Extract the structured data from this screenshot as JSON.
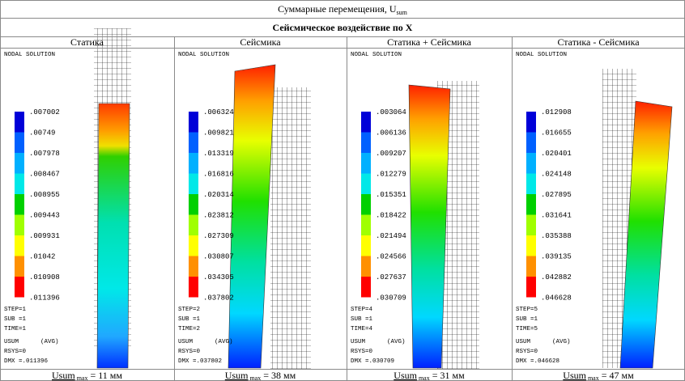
{
  "header": {
    "title": "Суммарные перемещения, U",
    "title_sub": "sum"
  },
  "subheader": "Сейсмическое воздействие по X",
  "panels": [
    {
      "heading": "Статика",
      "plot_label": "NODAL SOLUTION",
      "legend": [
        ".007002",
        ".00749",
        ".007978",
        ".008467",
        ".008955",
        ".009443",
        ".009931",
        ".01042",
        ".010908",
        ".011396"
      ],
      "info": [
        "STEP=1",
        "SUB =1",
        "TIME=1",
        "USUM      (AVG)",
        "RSYS=0",
        "DMX =.011396"
      ],
      "caption": {
        "symbol": "Usum",
        "sub": "max",
        "text": "= 11 мм"
      }
    },
    {
      "heading": "Сейсмика",
      "plot_label": "NODAL SOLUTION",
      "legend": [
        ".006324",
        ".009821",
        ".013319",
        ".016816",
        ".020314",
        ".023812",
        ".027309",
        ".030807",
        ".034305",
        ".037802"
      ],
      "info": [
        "STEP=2",
        "SUB =1",
        "TIME=2",
        "USUM      (AVG)",
        "RSYS=0",
        "DMX =.037802"
      ],
      "caption": {
        "symbol": "Usum",
        "sub": "max",
        "text": "= 38 мм"
      }
    },
    {
      "heading": "Статика + Сейсмика",
      "plot_label": "NODAL SOLUTION",
      "legend": [
        ".003064",
        ".006136",
        ".009207",
        ".012279",
        ".015351",
        ".018422",
        ".021494",
        ".024566",
        ".027637",
        ".030709"
      ],
      "info": [
        "STEP=4",
        "SUB =1",
        "TIME=4",
        "USUM      (AVG)",
        "RSYS=0",
        "DMX =.030709"
      ],
      "caption": {
        "symbol": "Usum",
        "sub": "max",
        "text": "= 31 мм"
      }
    },
    {
      "heading": "Статика - Сейсмика",
      "plot_label": "NODAL SOLUTION",
      "legend": [
        ".012908",
        ".016655",
        ".020401",
        ".024148",
        ".027895",
        ".031641",
        ".035388",
        ".039135",
        ".042882",
        ".046628"
      ],
      "info": [
        "STEP=5",
        "SUB =1",
        "TIME=5",
        "USUM      (AVG)",
        "RSYS=0",
        "DMX =.046628"
      ],
      "caption": {
        "symbol": "Usum",
        "sub": "max",
        "text": "= 47 мм"
      }
    }
  ]
}
